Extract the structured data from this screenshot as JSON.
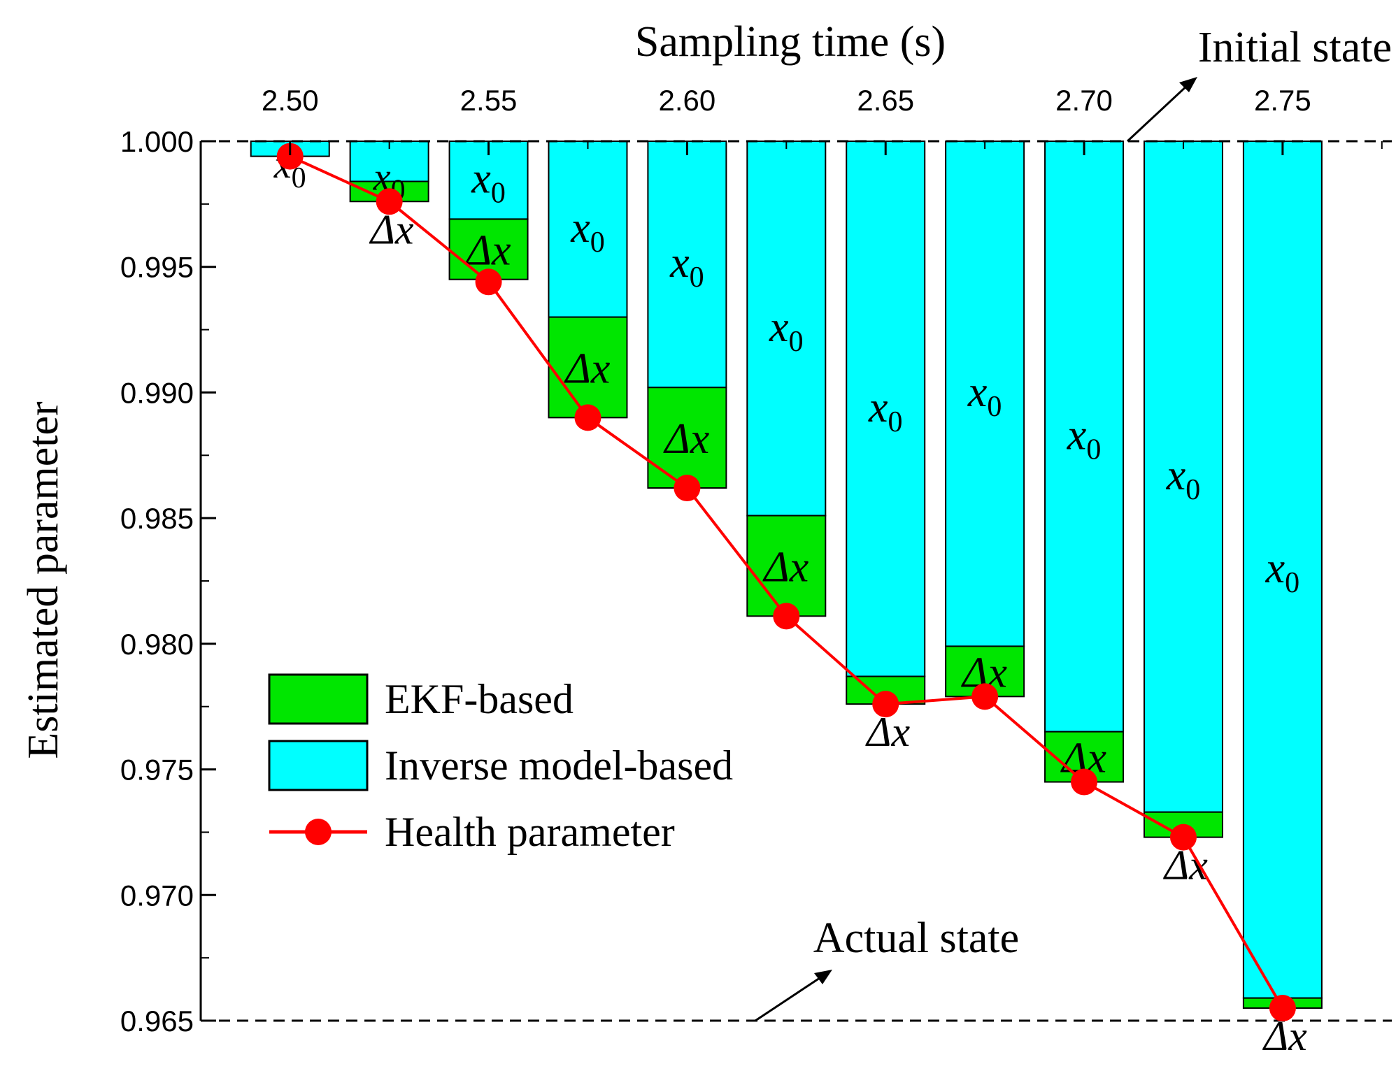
{
  "chart_data": {
    "type": "bar",
    "title": "",
    "xlabel": "Sampling time (s)",
    "ylabel": "Estimated parameter",
    "x_axis_position": "top",
    "y_axis_reversed": true,
    "xlim": [
      2.4775,
      2.7775
    ],
    "ylim": [
      0.965,
      1.0
    ],
    "xticks": [
      "2.50",
      "2.55",
      "2.60",
      "2.65",
      "2.70",
      "2.75"
    ],
    "yticks": [
      "1.000",
      "0.995",
      "0.990",
      "0.985",
      "0.980",
      "0.975",
      "0.970",
      "0.965"
    ],
    "grid": false,
    "legend_position": "lower-left",
    "categories": [
      2.5,
      2.525,
      2.55,
      2.575,
      2.6,
      2.625,
      2.65,
      2.675,
      2.7,
      2.725,
      2.75
    ],
    "series": [
      {
        "name": "Inverse model-based",
        "kind": "bar",
        "color": "#00ffff",
        "segment_symbol": "x0",
        "from": [
          1.0,
          1.0,
          1.0,
          1.0,
          1.0,
          1.0,
          1.0,
          1.0,
          1.0,
          1.0,
          1.0
        ],
        "to": [
          0.9994,
          0.9984,
          0.9969,
          0.993,
          0.9902,
          0.9851,
          0.9787,
          0.9799,
          0.9765,
          0.9733,
          0.9659
        ]
      },
      {
        "name": "EKF-based",
        "kind": "bar",
        "color": "#00e600",
        "segment_symbol": "Δx",
        "from": [
          0.9994,
          0.9984,
          0.9969,
          0.993,
          0.9902,
          0.9851,
          0.9787,
          0.9799,
          0.9765,
          0.9733,
          0.9659
        ],
        "to": [
          0.9994,
          0.9976,
          0.9945,
          0.989,
          0.9862,
          0.9811,
          0.9776,
          0.9779,
          0.9745,
          0.9723,
          0.9655
        ]
      },
      {
        "name": "Health parameter",
        "kind": "line",
        "marker": "circle",
        "color": "#ff0000",
        "values": [
          0.9994,
          0.9976,
          0.9944,
          0.989,
          0.9862,
          0.9811,
          0.9776,
          0.9779,
          0.9745,
          0.9723,
          0.9655
        ]
      }
    ],
    "annotations": [
      {
        "text": "Initial state",
        "value": 1.0,
        "role": "initial"
      },
      {
        "text": "Actual state",
        "value": 0.965,
        "role": "actual"
      }
    ],
    "segment_labels": {
      "inverse": "x",
      "inverse_sub": "0",
      "ekf": "Δx"
    }
  }
}
